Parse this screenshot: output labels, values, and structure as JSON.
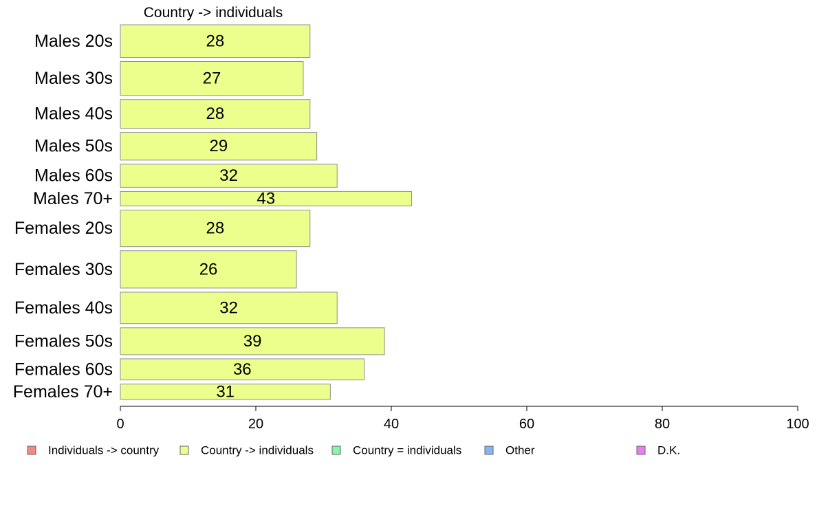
{
  "chart_data": {
    "type": "bar",
    "orientation": "horizontal",
    "title": "Country -> individuals",
    "categories": [
      "Males 20s",
      "Males 30s",
      "Males 40s",
      "Males 50s",
      "Males 60s",
      "Males 70+",
      "Females 20s",
      "Females 30s",
      "Females 40s",
      "Females 50s",
      "Females 60s",
      "Females 70+"
    ],
    "series": [
      {
        "name": "Country -> individuals",
        "values": [
          28,
          27,
          28,
          29,
          32,
          43,
          28,
          26,
          32,
          39,
          36,
          31
        ],
        "color": "#ecff8c"
      }
    ],
    "relative_weights": [
      0.85,
      0.88,
      0.75,
      0.72,
      0.6,
      0.38,
      0.95,
      0.97,
      0.82,
      0.7,
      0.55,
      0.4
    ],
    "xlim": [
      0,
      100
    ],
    "xticks": [
      0,
      20,
      40,
      60,
      80,
      100
    ],
    "grid": false,
    "legend_position": "bottom",
    "legend": [
      {
        "label": "Individuals -> country",
        "color": "#f08a85"
      },
      {
        "label": "Country -> individuals",
        "color": "#ecff8c"
      },
      {
        "label": "Country = individuals",
        "color": "#86f5b0"
      },
      {
        "label": "Other",
        "color": "#86b4f0"
      },
      {
        "label": "D.K.",
        "color": "#e87ef0"
      }
    ]
  }
}
